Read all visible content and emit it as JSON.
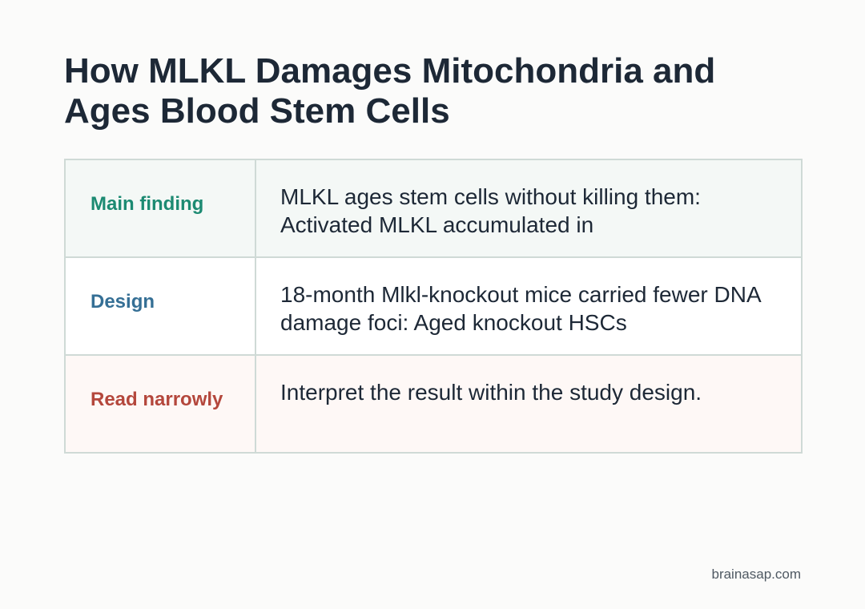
{
  "title": "How MLKL Damages Mitochondria and Ages Blood Stem Cells",
  "rows": [
    {
      "label": "Main finding",
      "text": "MLKL ages stem cells without killing them: Activated MLKL accumulated in",
      "label_color": "#1c8a72"
    },
    {
      "label": "Design",
      "text": "18-month Mlkl-knockout mice carried fewer DNA damage foci: Aged knockout HSCs",
      "label_color": "#356f95"
    },
    {
      "label": "Read narrowly",
      "text": "Interpret the result within the study design.",
      "label_color": "#b4473c"
    }
  ],
  "footer": {
    "site": "brainasap.com"
  }
}
